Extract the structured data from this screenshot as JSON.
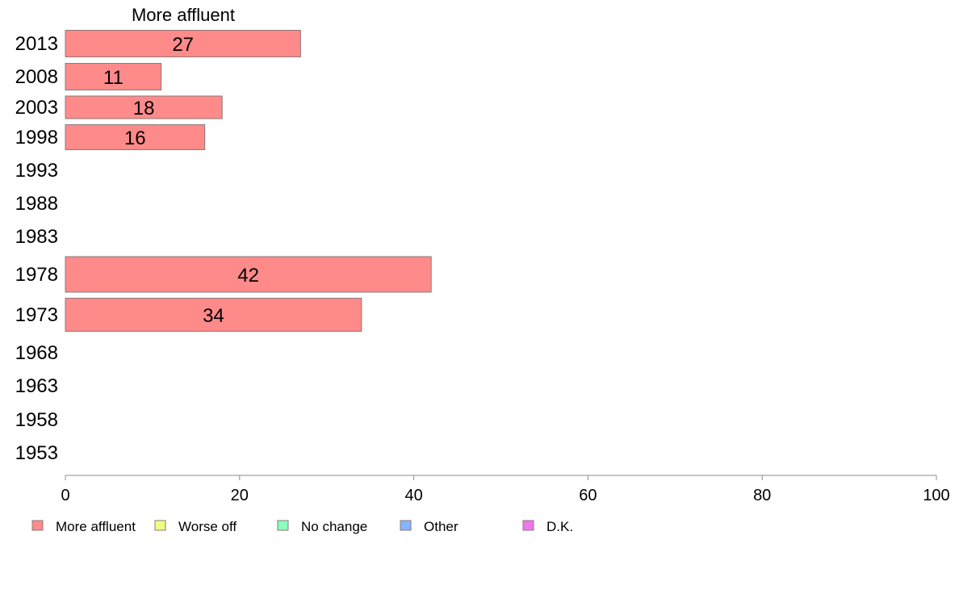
{
  "chart_data": {
    "type": "bar",
    "orientation": "horizontal",
    "title": "More affluent",
    "categories": [
      "2013",
      "2008",
      "2003",
      "1998",
      "1993",
      "1988",
      "1983",
      "1978",
      "1973",
      "1968",
      "1963",
      "1958",
      "1953"
    ],
    "series": [
      {
        "name": "More affluent",
        "color": "#ff8a8a",
        "values": [
          27,
          11,
          18,
          16,
          null,
          null,
          null,
          42,
          34,
          null,
          null,
          null,
          null
        ]
      }
    ],
    "xlim": [
      0,
      100
    ],
    "xticks": [
      0,
      20,
      40,
      60,
      80,
      100
    ],
    "grid": false,
    "legend": {
      "placement": "bottom",
      "items": [
        {
          "label": "More affluent",
          "color": "#ff8a8a"
        },
        {
          "label": "Worse off",
          "color": "#eeff80"
        },
        {
          "label": "No change",
          "color": "#88ffbb"
        },
        {
          "label": "Other",
          "color": "#88b4ff"
        },
        {
          "label": "D.K.",
          "color": "#ee77ee"
        }
      ]
    }
  }
}
